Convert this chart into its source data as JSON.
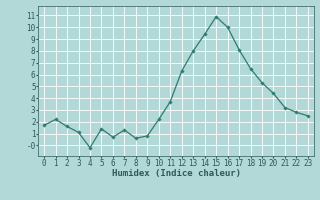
{
  "x": [
    0,
    1,
    2,
    3,
    4,
    5,
    6,
    7,
    8,
    9,
    10,
    11,
    12,
    13,
    14,
    15,
    16,
    17,
    18,
    19,
    20,
    21,
    22,
    23
  ],
  "y": [
    1.7,
    2.2,
    1.6,
    1.1,
    -0.2,
    1.4,
    0.7,
    1.3,
    0.6,
    0.8,
    2.2,
    3.7,
    6.3,
    8.0,
    9.4,
    10.9,
    10.0,
    8.1,
    6.5,
    5.3,
    4.4,
    3.2,
    2.8,
    2.5
  ],
  "line_color": "#2d7d6e",
  "marker": "D",
  "markersize": 1.8,
  "linewidth": 0.9,
  "xlabel": "Humidex (Indice chaleur)",
  "xlabel_fontsize": 6.5,
  "yticks": [
    0,
    1,
    2,
    3,
    4,
    5,
    6,
    7,
    8,
    9,
    10,
    11
  ],
  "ytick_labels": [
    "-0",
    "1",
    "2",
    "3",
    "4",
    "5",
    "6",
    "7",
    "8",
    "9",
    "10",
    "11"
  ],
  "ylim": [
    -0.9,
    11.8
  ],
  "xlim": [
    -0.5,
    23.5
  ],
  "bg_color": "#b2d8d8",
  "grid_color": "#d0e8e8",
  "tick_fontsize": 5.5
}
